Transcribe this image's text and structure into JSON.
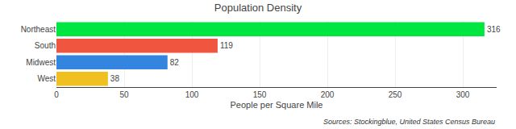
{
  "chart_data": {
    "type": "bar",
    "orientation": "horizontal",
    "title": "Population Density",
    "categories": [
      "West",
      "Midwest",
      "South",
      "Northeast"
    ],
    "values": [
      38,
      82,
      119,
      316
    ],
    "colors": [
      "#f0c020",
      "#3385e0",
      "#f05540",
      "#00e640"
    ],
    "xlabel": "People per Square Mile",
    "xlim": [
      0,
      325
    ],
    "xticks": [
      0,
      50,
      100,
      150,
      200,
      250,
      300
    ],
    "grid": true,
    "data_labels": true,
    "annotations": [
      "Sources: Stockingblue, United States Census Bureau"
    ]
  }
}
